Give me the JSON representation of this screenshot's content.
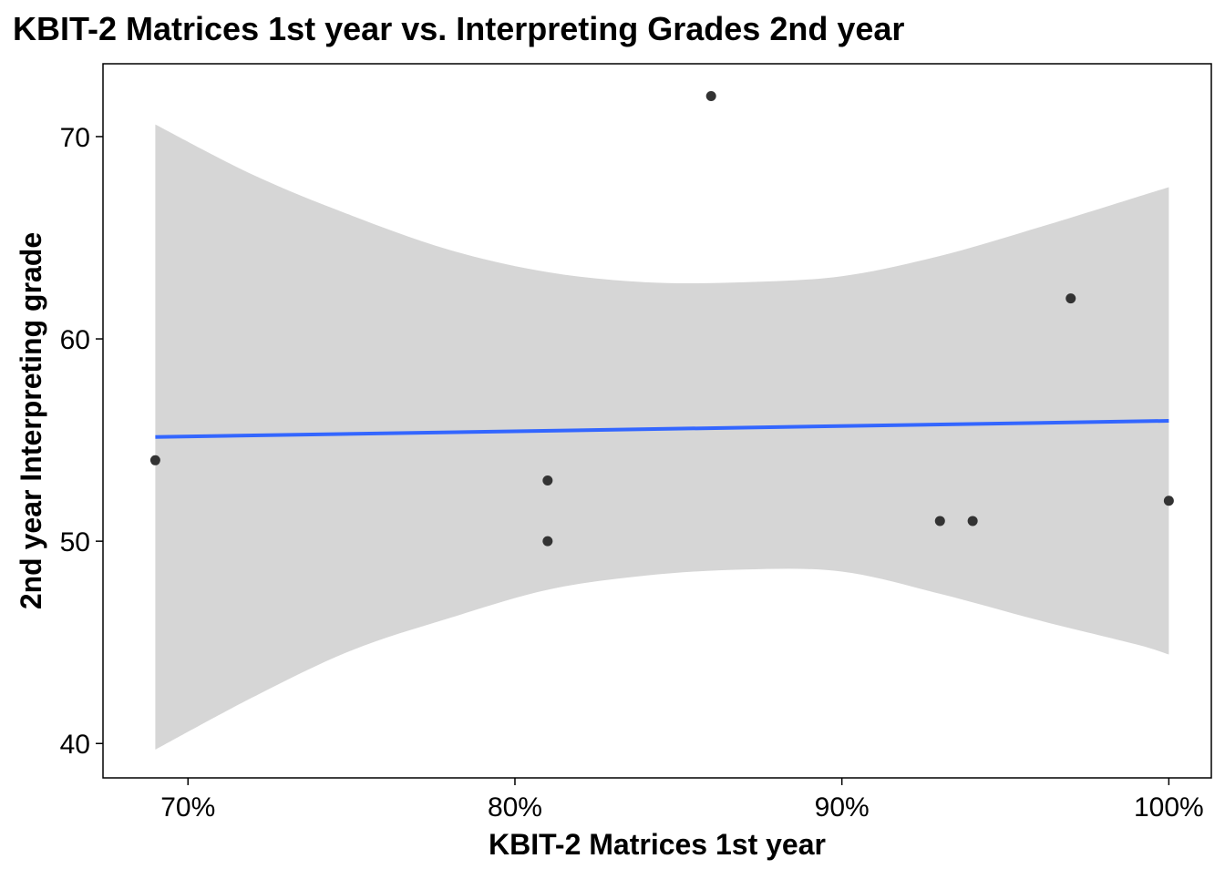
{
  "chart_data": {
    "type": "scatter",
    "title": "KBIT-2 Matrices 1st year vs. Interpreting Grades 2nd year",
    "xlabel": "KBIT-2 Matrices 1st year",
    "ylabel": "2nd year Interpreting grade",
    "xlim": [
      0.674,
      1.013
    ],
    "ylim": [
      38.3,
      73.6
    ],
    "x_ticks": [
      0.7,
      0.8,
      0.9,
      1.0
    ],
    "x_tick_labels": [
      "70%",
      "80%",
      "90%",
      "100%"
    ],
    "y_ticks": [
      40,
      50,
      60,
      70
    ],
    "y_tick_labels": [
      "40",
      "50",
      "60",
      "70"
    ],
    "grid": false,
    "legend": "none",
    "colors": {
      "point": "#333333",
      "fit_line": "#3366ff",
      "confidence_band": "#d6d6d6",
      "panel_border": "#000000"
    },
    "points": [
      {
        "x": 0.69,
        "y": 54
      },
      {
        "x": 0.81,
        "y": 53
      },
      {
        "x": 0.81,
        "y": 50
      },
      {
        "x": 0.86,
        "y": 72
      },
      {
        "x": 0.93,
        "y": 51
      },
      {
        "x": 0.94,
        "y": 51
      },
      {
        "x": 0.97,
        "y": 62
      },
      {
        "x": 1.0,
        "y": 52
      }
    ],
    "fit_line": {
      "x": [
        0.69,
        1.0
      ],
      "y": [
        55.15,
        55.95
      ]
    },
    "confidence_band": {
      "x": [
        0.69,
        0.72,
        0.75,
        0.78,
        0.81,
        0.84,
        0.87,
        0.9,
        0.93,
        0.96,
        0.99,
        1.0
      ],
      "upper": [
        70.6,
        68.1,
        66.1,
        64.4,
        63.3,
        62.8,
        62.8,
        63.1,
        64.1,
        65.5,
        67.0,
        67.5
      ],
      "lower": [
        39.7,
        42.3,
        44.6,
        46.2,
        47.6,
        48.3,
        48.6,
        48.5,
        47.4,
        46.1,
        44.9,
        44.4
      ]
    }
  }
}
